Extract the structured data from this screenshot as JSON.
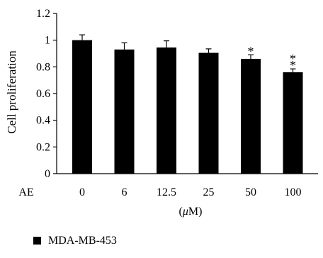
{
  "chart_data": {
    "type": "bar",
    "ylabel": "Cell proliferation",
    "xlabel_prefix": "AE",
    "xunit_prefix": "(",
    "xunit_mu": "μ",
    "xunit_suffix": "M)",
    "ylim": [
      0,
      1.2
    ],
    "yticks": [
      "0",
      "0.2",
      "0.4",
      "0.6",
      "0.8",
      "1",
      "1.2"
    ],
    "categories": [
      "0",
      "6",
      "12.5",
      "25",
      "50",
      "100"
    ],
    "series": [
      {
        "name": "MDA-MB-453",
        "values": [
          1.0,
          0.93,
          0.945,
          0.905,
          0.86,
          0.76
        ],
        "errors": [
          0.04,
          0.05,
          0.05,
          0.03,
          0.03,
          0.025
        ],
        "significance": [
          "",
          "",
          "",
          "",
          "*",
          "**"
        ],
        "color": "#000000"
      }
    ],
    "grid": false,
    "legend": "bottom-left"
  }
}
